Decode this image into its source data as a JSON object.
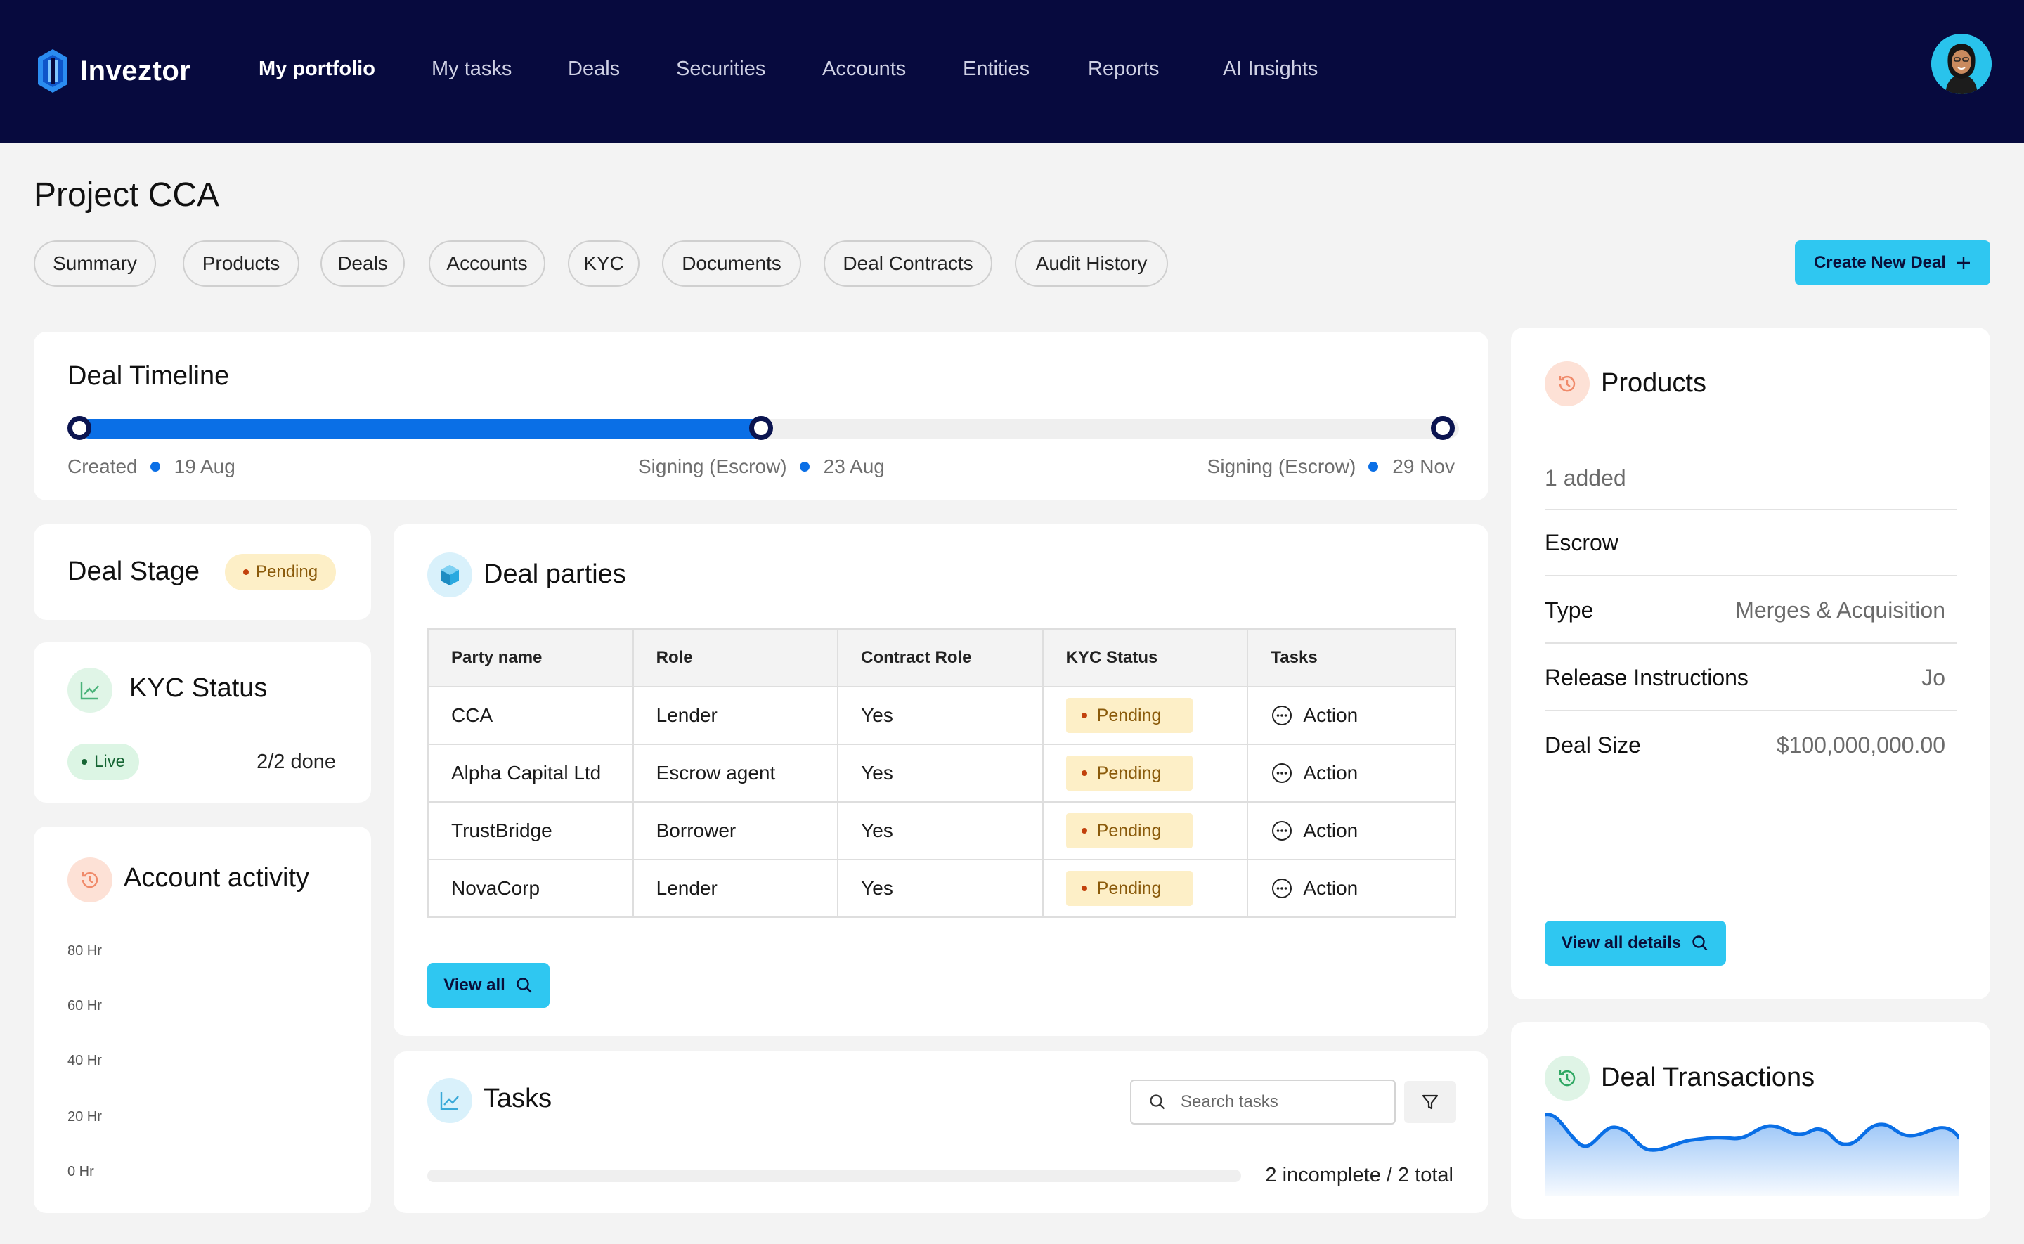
{
  "app": {
    "name": "Inveztor"
  },
  "nav": {
    "items": [
      "My portfolio",
      "My tasks",
      "Deals",
      "Securities",
      "Accounts",
      "Entities",
      "Reports",
      "AI Insights"
    ],
    "active": "My portfolio"
  },
  "page": {
    "title": "Project CCA",
    "tabs": [
      "Summary",
      "Products",
      "Deals",
      "Accounts",
      "KYC",
      "Documents",
      "Deal Contracts",
      "Audit History"
    ],
    "create_button": "Create New Deal"
  },
  "timeline": {
    "title": "Deal Timeline",
    "progress": 0.5,
    "milestones": [
      {
        "label": "Created",
        "date": "19 Aug"
      },
      {
        "label": "Signing (Escrow)",
        "date": "23 Aug"
      },
      {
        "label": "Signing (Escrow)",
        "date": "29 Nov"
      }
    ]
  },
  "deal_stage": {
    "title": "Deal Stage",
    "status": "Pending"
  },
  "kyc_status": {
    "title": "KYC Status",
    "status": "Live",
    "progress_text": "2/2 done"
  },
  "account_activity": {
    "title": "Account activity",
    "axis_labels": [
      "80 Hr",
      "60 Hr",
      "40 Hr",
      "20 Hr",
      "0 Hr"
    ]
  },
  "deal_parties": {
    "title": "Deal parties",
    "columns": [
      "Party name",
      "Role",
      "Contract Role",
      "KYC Status",
      "Tasks"
    ],
    "rows": [
      {
        "party": "CCA",
        "role": "Lender",
        "contract_role": "Yes",
        "kyc": "Pending",
        "task": "Action"
      },
      {
        "party": "Alpha Capital Ltd",
        "role": "Escrow agent",
        "contract_role": "Yes",
        "kyc": "Pending",
        "task": "Action"
      },
      {
        "party": "TrustBridge",
        "role": "Borrower",
        "contract_role": "Yes",
        "kyc": "Pending",
        "task": "Action"
      },
      {
        "party": "NovaCorp",
        "role": "Lender",
        "contract_role": "Yes",
        "kyc": "Pending",
        "task": "Action"
      }
    ],
    "view_all": "View all"
  },
  "tasks": {
    "title": "Tasks",
    "search_placeholder": "Search tasks",
    "summary": "2 incomplete / 2 total",
    "progress": 0
  },
  "products": {
    "title": "Products",
    "added": "1 added",
    "name": "Escrow",
    "details": [
      {
        "label": "Type",
        "value": "Merges & Acquisition"
      },
      {
        "label": "Release Instructions",
        "value": "Jo"
      },
      {
        "label": "Deal Size",
        "value": "$100,000,000.00"
      }
    ],
    "view_details": "View all details"
  },
  "deal_transactions": {
    "title": "Deal Transactions",
    "line_color": "#0a6fe6"
  },
  "colors": {
    "nav_bg": "#070a3e",
    "accent": "#2fc7f1",
    "timeline": "#0a6fe6",
    "pending_bg": "#fdefc7",
    "live_bg": "#dcf5e4"
  }
}
